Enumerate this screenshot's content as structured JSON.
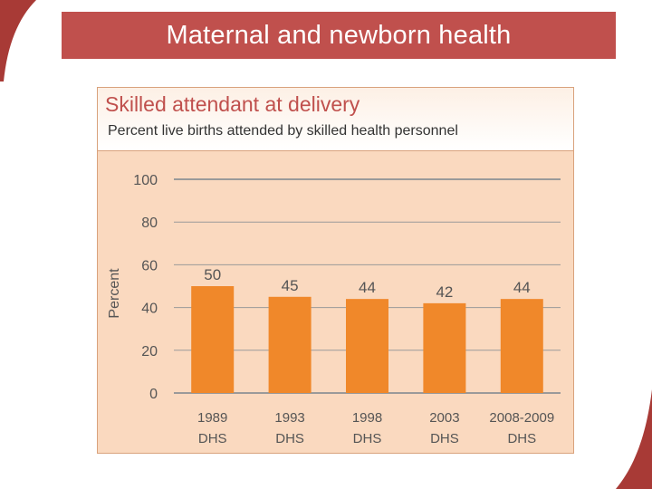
{
  "slide": {
    "title": "Maternal and newborn health"
  },
  "colors": {
    "banner": "#c0504d",
    "bar": "#f0882a",
    "panel_bg": "#fad9bf",
    "title_text": "#c0504d",
    "gridline": "#9a9a9a",
    "label_text": "#555555"
  },
  "chart_data": {
    "type": "bar",
    "title": "Skilled attendant at delivery",
    "subtitle": "Percent live births attended by skilled health personnel",
    "ylabel": "Percent",
    "xlabel": "",
    "ylim": [
      0,
      100
    ],
    "yticks": [
      0,
      20,
      40,
      60,
      80,
      100
    ],
    "grid": true,
    "categories": [
      [
        "1989",
        "DHS"
      ],
      [
        "1993",
        "DHS"
      ],
      [
        "1998",
        "DHS"
      ],
      [
        "2003",
        "DHS"
      ],
      [
        "2008-2009",
        "DHS"
      ]
    ],
    "values": [
      50,
      45,
      44,
      42,
      44
    ]
  }
}
